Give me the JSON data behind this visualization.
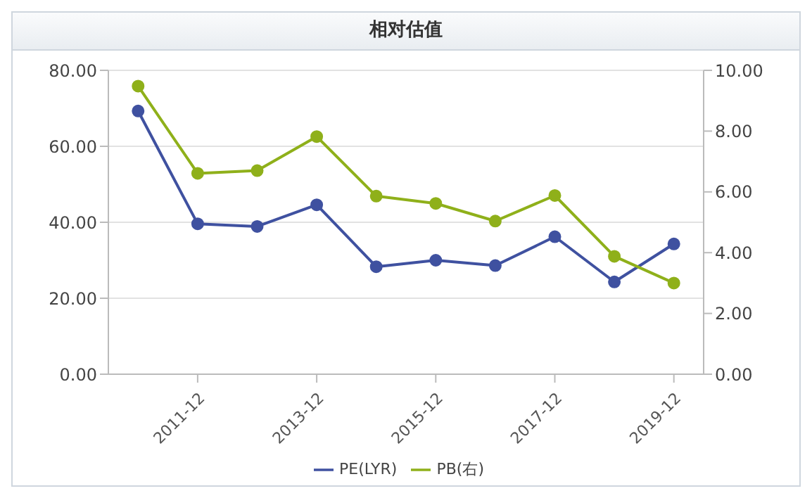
{
  "chart_data": {
    "type": "line",
    "title": "相对估值",
    "categories": [
      null,
      "2011-12",
      null,
      "2013-12",
      null,
      "2015-12",
      null,
      "2017-12",
      null,
      "2019-12"
    ],
    "series": [
      {
        "name": "PE(LYR)",
        "color": "#3f51a0",
        "values": [
          69.3,
          39.6,
          38.9,
          44.6,
          28.3,
          30.0,
          28.6,
          36.2,
          24.3,
          34.3
        ]
      },
      {
        "name": "PB(右)",
        "color": "#8fb01a",
        "axis": "y2",
        "values": [
          9.48,
          6.61,
          6.7,
          7.82,
          5.86,
          5.62,
          5.04,
          5.88,
          3.88,
          3.0
        ]
      }
    ],
    "ylim": [
      0,
      80
    ],
    "yticks": [
      {
        "value": 0,
        "label": "0.00"
      },
      {
        "value": 20,
        "label": "20.00"
      },
      {
        "value": 40,
        "label": "40.00"
      },
      {
        "value": 60,
        "label": "60.00"
      },
      {
        "value": 80,
        "label": "80.00"
      }
    ],
    "y2lim": [
      0,
      10
    ],
    "y2ticks": [
      {
        "value": 0,
        "label": "0.00"
      },
      {
        "value": 2,
        "label": "2.00"
      },
      {
        "value": 4,
        "label": "4.00"
      },
      {
        "value": 6,
        "label": "6.00"
      },
      {
        "value": 8,
        "label": "8.00"
      },
      {
        "value": 10,
        "label": "10.00"
      }
    ],
    "grid": "y",
    "legend": "bottom",
    "marker": "circle",
    "line_style": "solid"
  }
}
